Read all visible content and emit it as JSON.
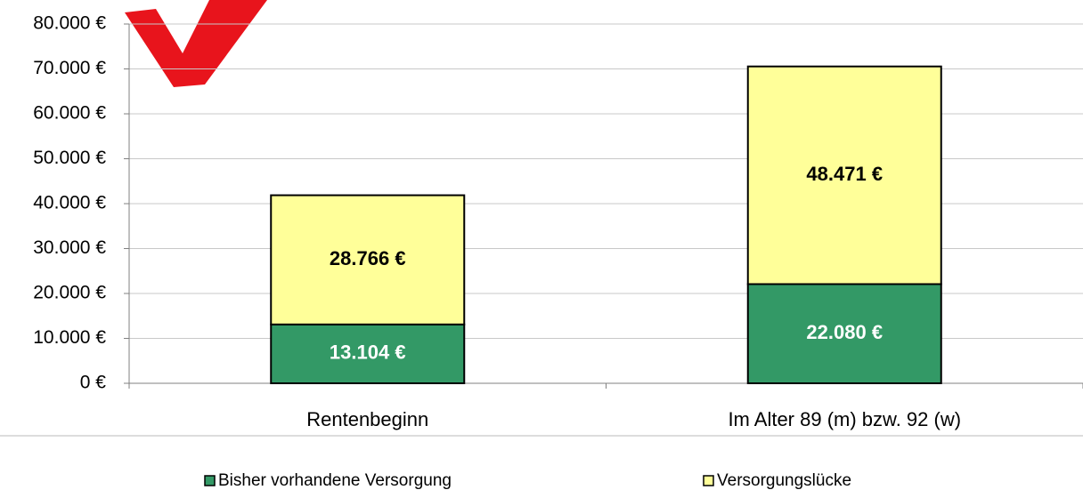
{
  "chart_data": {
    "type": "stacked_bar",
    "categories": [
      "Rentenbeginn",
      "Im Alter 89 (m) bzw. 92 (w)"
    ],
    "series": [
      {
        "name": "Bisher vorhandene Versorgung",
        "color": "#339966",
        "values": [
          13104,
          22080
        ],
        "value_labels": [
          "13.104 €",
          "22.080 €"
        ]
      },
      {
        "name": "Versorgungslücke",
        "color": "#ffff99",
        "values": [
          28766,
          48471
        ],
        "value_labels": [
          "28.766 €",
          "48.471 €"
        ]
      }
    ],
    "ylim": [
      0,
      80000
    ],
    "yticks": [
      {
        "value": 0,
        "label": "0 €"
      },
      {
        "value": 10000,
        "label": "10.000 €"
      },
      {
        "value": 20000,
        "label": "20.000 €"
      },
      {
        "value": 30000,
        "label": "30.000 €"
      },
      {
        "value": 40000,
        "label": "40.000 €"
      },
      {
        "value": 50000,
        "label": "50.000 €"
      },
      {
        "value": 60000,
        "label": "60.000 €"
      },
      {
        "value": 70000,
        "label": "70.000 €"
      },
      {
        "value": 80000,
        "label": "80.000 €"
      }
    ],
    "grid": true,
    "legend": "bottom"
  }
}
